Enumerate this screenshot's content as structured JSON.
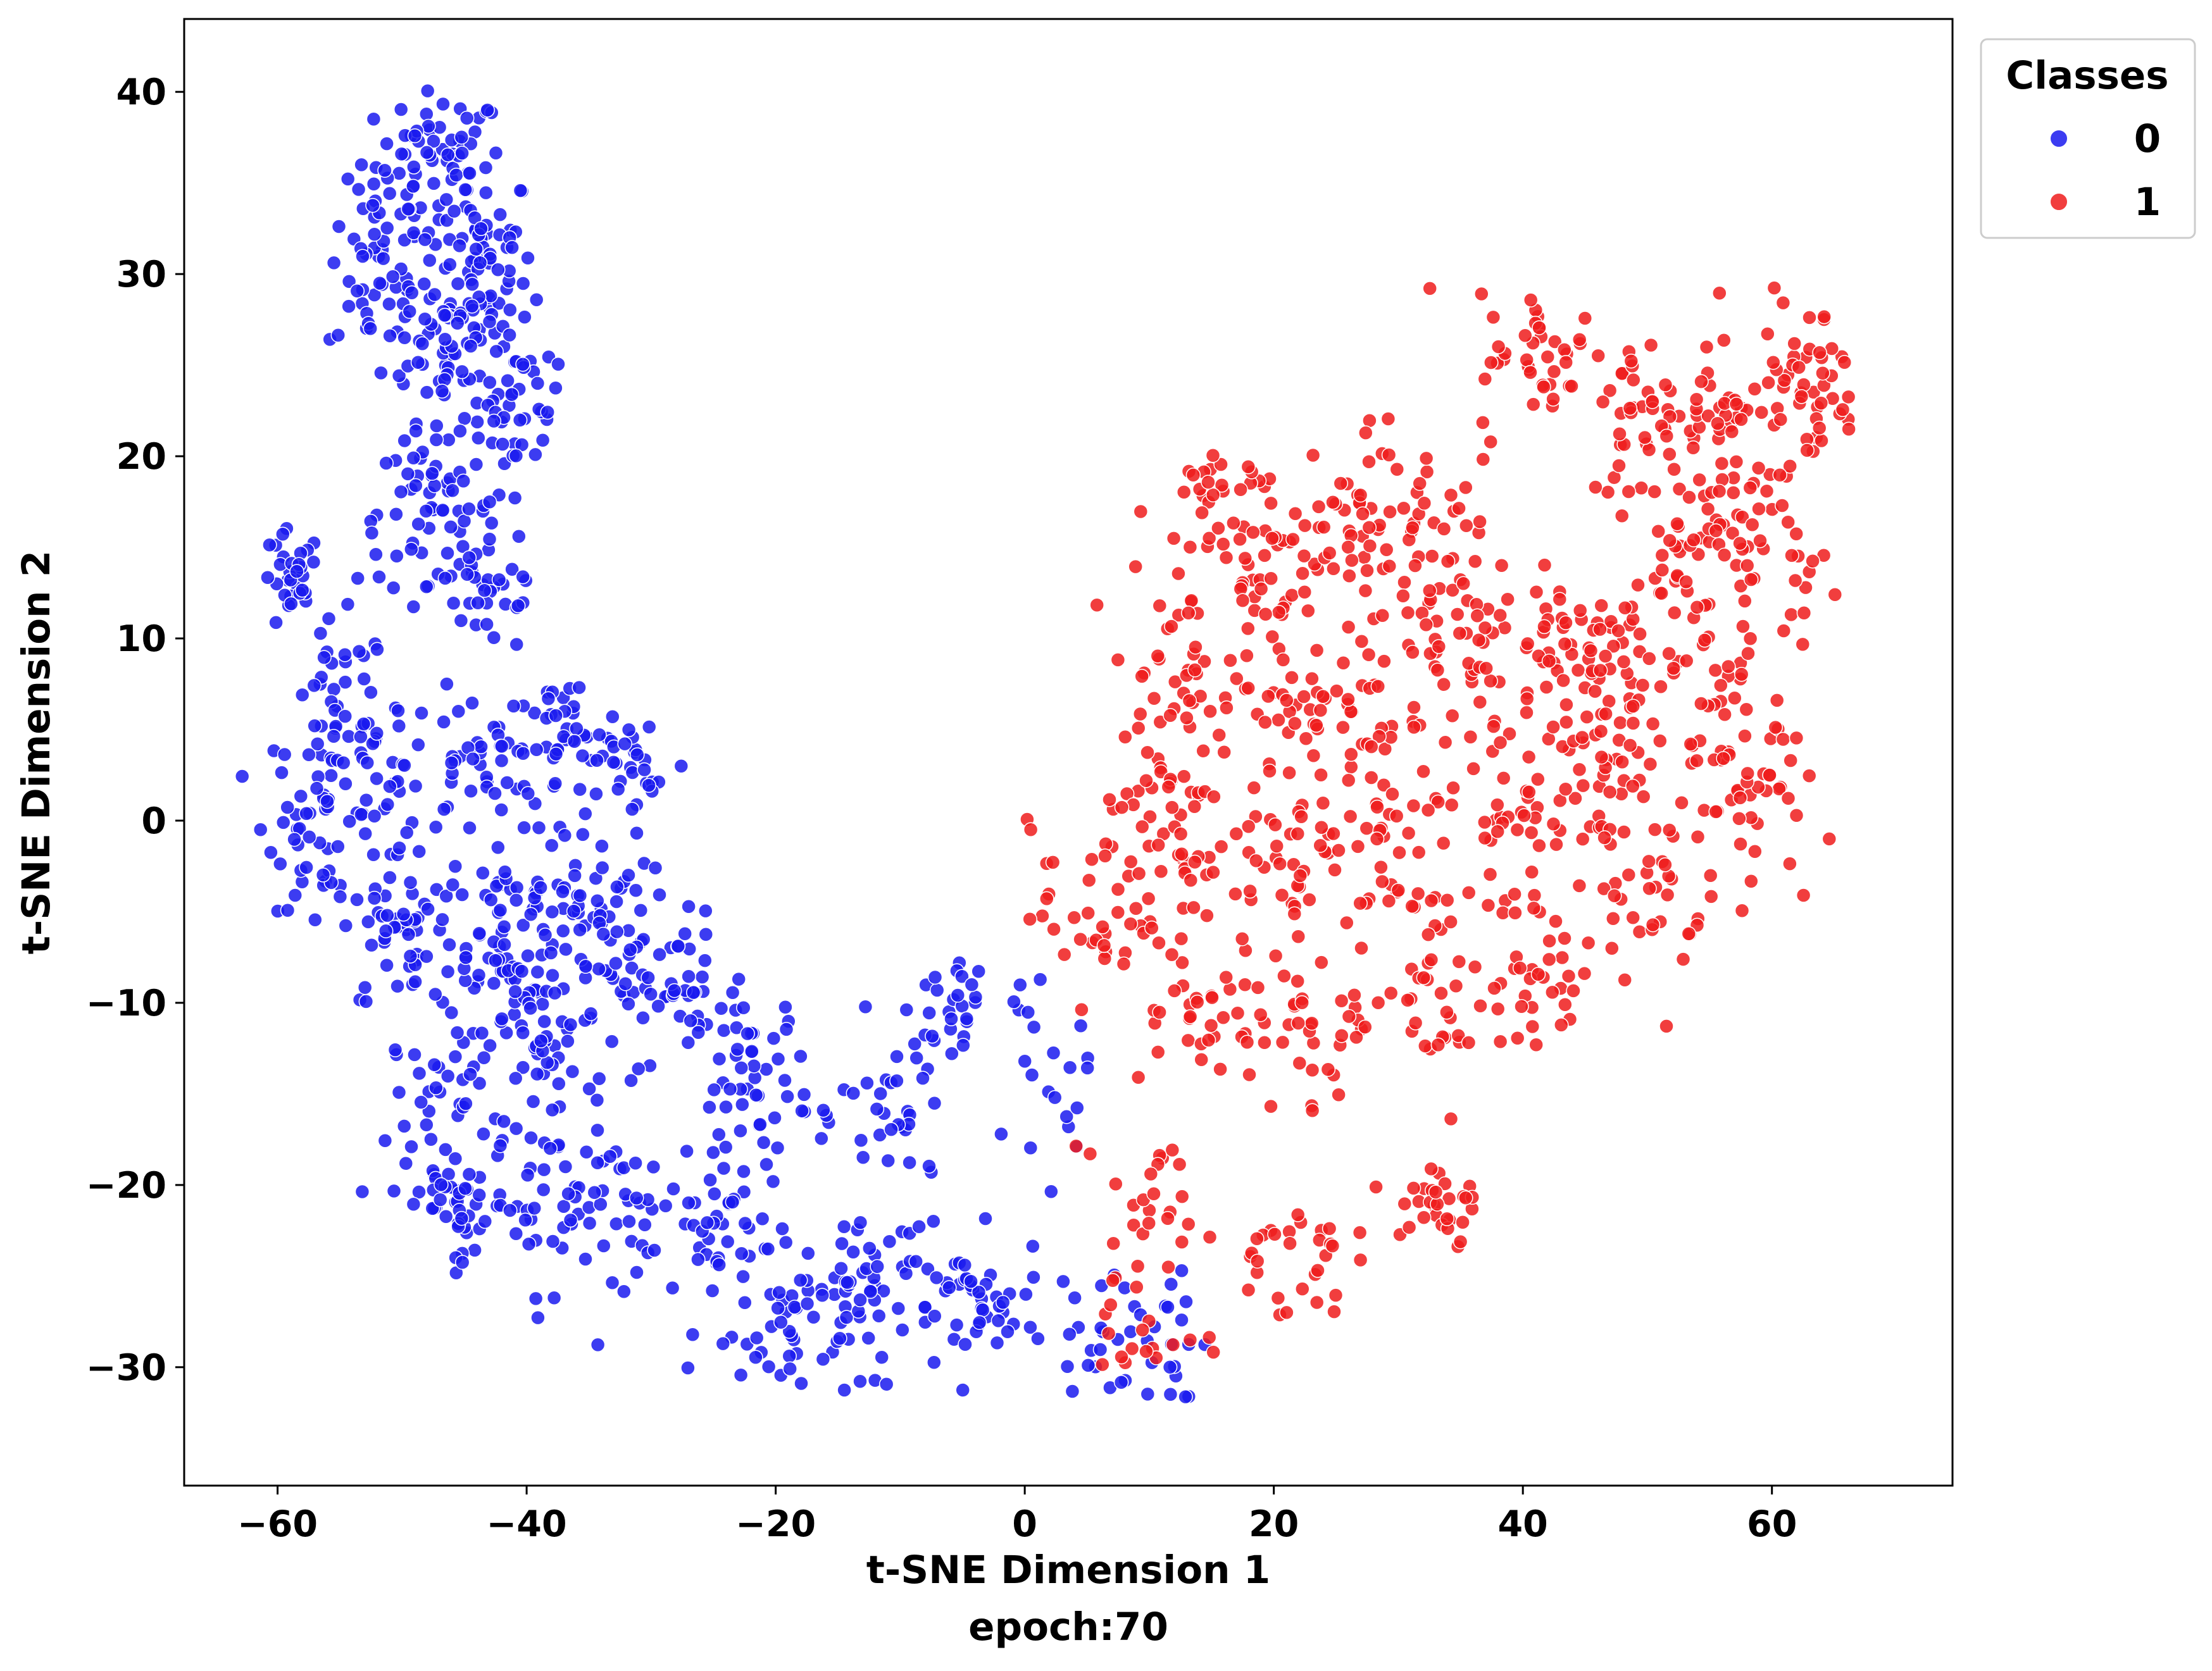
{
  "chart_data": {
    "type": "scatter",
    "title": "",
    "xlabel": "t-SNE Dimension 1",
    "ylabel": "t-SNE Dimension 2",
    "caption": "epoch:70",
    "xlim": [
      -67.5,
      74.5
    ],
    "ylim": [
      -36.5,
      44.0
    ],
    "x_ticks": [
      -60,
      -40,
      -20,
      0,
      20,
      40,
      60
    ],
    "y_ticks": [
      -30,
      -20,
      -10,
      0,
      10,
      20,
      30,
      40
    ],
    "x_tick_labels": [
      "−60",
      "−40",
      "−20",
      "0",
      "20",
      "40",
      "60"
    ],
    "y_tick_labels": [
      "−30",
      "−20",
      "−10",
      "0",
      "10",
      "20",
      "30",
      "40"
    ],
    "grid": false,
    "legend": {
      "title": "Classes",
      "placement": "outside upper-right",
      "entries": [
        {
          "label": "0",
          "color": "#1a1aee"
        },
        {
          "label": "1",
          "color": "#ee1c1c"
        }
      ]
    },
    "series": [
      {
        "name": "0",
        "color": "#1a1aee",
        "point_count": 1350,
        "blobs": [
          {
            "center": [
              -47,
              36
            ],
            "spread": [
              3.2,
              2.5
            ],
            "n": 70
          },
          {
            "center": [
              -52,
              30
            ],
            "spread": [
              2.5,
              3.0
            ],
            "n": 50
          },
          {
            "center": [
              -44,
              31
            ],
            "spread": [
              3.0,
              3.0
            ],
            "n": 60
          },
          {
            "center": [
              -46,
              26
            ],
            "spread": [
              3.5,
              2.5
            ],
            "n": 60
          },
          {
            "center": [
              -41,
              23
            ],
            "spread": [
              2.5,
              3.0
            ],
            "n": 45
          },
          {
            "center": [
              -48,
              17
            ],
            "spread": [
              3.5,
              2.5
            ],
            "n": 60
          },
          {
            "center": [
              -43,
              13
            ],
            "spread": [
              3.0,
              2.5
            ],
            "n": 35
          },
          {
            "center": [
              -59,
              13
            ],
            "spread": [
              1.5,
              1.8
            ],
            "n": 30
          },
          {
            "center": [
              -55,
              6
            ],
            "spread": [
              2.5,
              3.0
            ],
            "n": 40
          },
          {
            "center": [
              -56,
              0
            ],
            "spread": [
              3.0,
              3.0
            ],
            "n": 55
          },
          {
            "center": [
              -51,
              3
            ],
            "spread": [
              2.0,
              2.5
            ],
            "n": 25
          },
          {
            "center": [
              -44,
              3
            ],
            "spread": [
              3.5,
              2.5
            ],
            "n": 45
          },
          {
            "center": [
              -37,
              4
            ],
            "spread": [
              3.0,
              2.5
            ],
            "n": 40
          },
          {
            "center": [
              -31,
              3
            ],
            "spread": [
              2.5,
              2.0
            ],
            "n": 25
          },
          {
            "center": [
              -50,
              -6
            ],
            "spread": [
              3.0,
              3.0
            ],
            "n": 50
          },
          {
            "center": [
              -42,
              -6
            ],
            "spread": [
              3.5,
              3.0
            ],
            "n": 70
          },
          {
            "center": [
              -35,
              -5
            ],
            "spread": [
              3.0,
              3.0
            ],
            "n": 55
          },
          {
            "center": [
              -29,
              -9
            ],
            "spread": [
              3.0,
              2.5
            ],
            "n": 45
          },
          {
            "center": [
              -38,
              -12
            ],
            "spread": [
              3.5,
              3.0
            ],
            "n": 55
          },
          {
            "center": [
              -46,
              -15
            ],
            "spread": [
              3.0,
              2.5
            ],
            "n": 40
          },
          {
            "center": [
              -46,
              -21
            ],
            "spread": [
              3.0,
              2.0
            ],
            "n": 45
          },
          {
            "center": [
              -38,
              -21
            ],
            "spread": [
              3.0,
              2.5
            ],
            "n": 40
          },
          {
            "center": [
              -31,
              -22
            ],
            "spread": [
              3.0,
              3.0
            ],
            "n": 30
          },
          {
            "center": [
              -22,
              -14
            ],
            "spread": [
              3.0,
              3.0
            ],
            "n": 55
          },
          {
            "center": [
              -24,
              -23
            ],
            "spread": [
              3.0,
              3.0
            ],
            "n": 45
          },
          {
            "center": [
              -18,
              -28
            ],
            "spread": [
              3.0,
              2.5
            ],
            "n": 45
          },
          {
            "center": [
              -12,
              -25
            ],
            "spread": [
              3.0,
              3.0
            ],
            "n": 45
          },
          {
            "center": [
              -10,
              -16
            ],
            "spread": [
              3.0,
              3.0
            ],
            "n": 35
          },
          {
            "center": [
              -4,
              -27
            ],
            "spread": [
              3.5,
              2.5
            ],
            "n": 45
          },
          {
            "center": [
              -5,
              -10
            ],
            "spread": [
              2.5,
              2.5
            ],
            "n": 25
          },
          {
            "center": [
              2,
              -15
            ],
            "spread": [
              2.0,
              3.0
            ],
            "n": 20
          },
          {
            "center": [
              6,
              -28
            ],
            "spread": [
              3.0,
              2.0
            ],
            "n": 20
          },
          {
            "center": [
              12,
              -28
            ],
            "spread": [
              2.0,
              3.0
            ],
            "n": 20
          }
        ]
      },
      {
        "name": "1",
        "color": "#ee1c1c",
        "point_count": 1250,
        "blobs": [
          {
            "center": [
              20,
              15
            ],
            "spread": [
              4.0,
              3.0
            ],
            "n": 50
          },
          {
            "center": [
              14,
              17
            ],
            "spread": [
              2.5,
              2.5
            ],
            "n": 25
          },
          {
            "center": [
              26,
              17
            ],
            "spread": [
              3.0,
              3.0
            ],
            "n": 35
          },
          {
            "center": [
              32,
              15
            ],
            "spread": [
              3.0,
              3.0
            ],
            "n": 35
          },
          {
            "center": [
              12,
              8
            ],
            "spread": [
              3.0,
              3.0
            ],
            "n": 35
          },
          {
            "center": [
              20,
              7
            ],
            "spread": [
              3.5,
              3.0
            ],
            "n": 40
          },
          {
            "center": [
              27,
              6
            ],
            "spread": [
              3.0,
              3.0
            ],
            "n": 35
          },
          {
            "center": [
              35,
              10
            ],
            "spread": [
              3.0,
              3.0
            ],
            "n": 40
          },
          {
            "center": [
              43,
              10
            ],
            "spread": [
              3.0,
              3.0
            ],
            "n": 40
          },
          {
            "center": [
              42,
              25
            ],
            "spread": [
              3.5,
              2.5
            ],
            "n": 45
          },
          {
            "center": [
              50,
              22
            ],
            "spread": [
              3.0,
              3.0
            ],
            "n": 40
          },
          {
            "center": [
              57,
              23
            ],
            "spread": [
              3.0,
              3.0
            ],
            "n": 45
          },
          {
            "center": [
              63,
              24
            ],
            "spread": [
              2.5,
              3.0
            ],
            "n": 40
          },
          {
            "center": [
              53,
              15
            ],
            "spread": [
              3.0,
              3.0
            ],
            "n": 45
          },
          {
            "center": [
              60,
              15
            ],
            "spread": [
              3.0,
              3.0
            ],
            "n": 40
          },
          {
            "center": [
              48,
              8
            ],
            "spread": [
              3.0,
              3.0
            ],
            "n": 40
          },
          {
            "center": [
              56,
              6
            ],
            "spread": [
              3.0,
              3.0
            ],
            "n": 40
          },
          {
            "center": [
              38,
              1
            ],
            "spread": [
              3.0,
              3.0
            ],
            "n": 40
          },
          {
            "center": [
              46,
              2
            ],
            "spread": [
              3.0,
              3.0
            ],
            "n": 40
          },
          {
            "center": [
              58,
              1
            ],
            "spread": [
              2.5,
              2.5
            ],
            "n": 30
          },
          {
            "center": [
              11,
              0
            ],
            "spread": [
              3.5,
              3.0
            ],
            "n": 45
          },
          {
            "center": [
              20,
              -2
            ],
            "spread": [
              3.5,
              3.0
            ],
            "n": 40
          },
          {
            "center": [
              29,
              -2
            ],
            "spread": [
              3.5,
              3.0
            ],
            "n": 40
          },
          {
            "center": [
              6,
              -5
            ],
            "spread": [
              3.5,
              3.0
            ],
            "n": 40
          },
          {
            "center": [
              14,
              -10
            ],
            "spread": [
              3.0,
              3.0
            ],
            "n": 35
          },
          {
            "center": [
              24,
              -11
            ],
            "spread": [
              3.5,
              3.0
            ],
            "n": 40
          },
          {
            "center": [
              34,
              -9
            ],
            "spread": [
              3.0,
              3.0
            ],
            "n": 35
          },
          {
            "center": [
              42,
              -8
            ],
            "spread": [
              3.0,
              3.0
            ],
            "n": 35
          },
          {
            "center": [
              50,
              -4
            ],
            "spread": [
              3.0,
              3.0
            ],
            "n": 35
          },
          {
            "center": [
              10,
              -20
            ],
            "spread": [
              2.5,
              3.0
            ],
            "n": 25
          },
          {
            "center": [
              21,
              -24
            ],
            "spread": [
              3.0,
              2.0
            ],
            "n": 30
          },
          {
            "center": [
              33,
              -21
            ],
            "spread": [
              2.5,
              2.0
            ],
            "n": 30
          },
          {
            "center": [
              10,
              -28
            ],
            "spread": [
              2.5,
              2.5
            ],
            "n": 20
          }
        ]
      }
    ]
  }
}
